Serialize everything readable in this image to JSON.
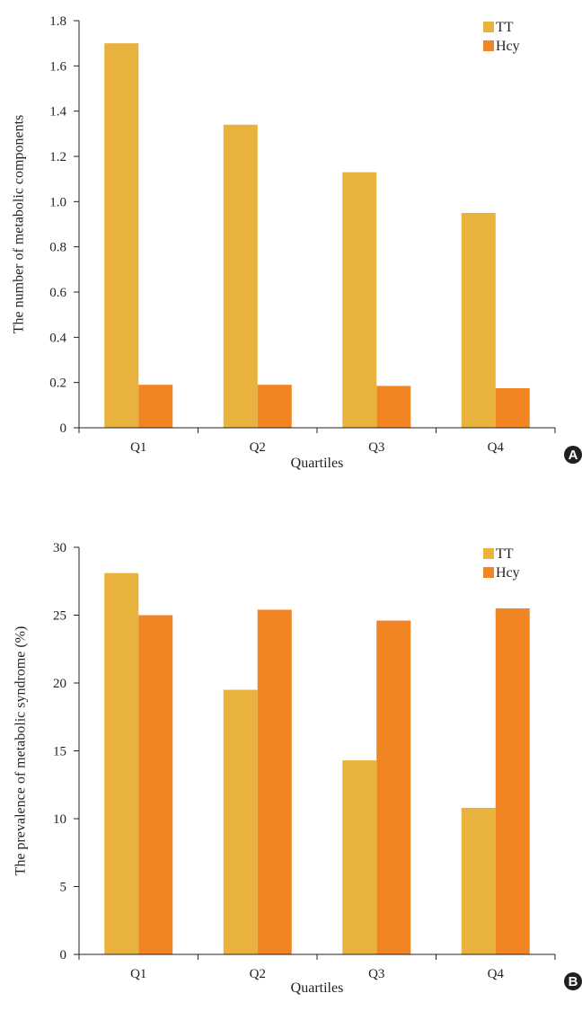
{
  "colors": {
    "TT": "#e9b23f",
    "Hcy": "#f18423",
    "axis": "#231f20",
    "badge": "#231f20"
  },
  "chart_data": [
    {
      "type": "bar",
      "panel_label": "A",
      "categories": [
        "Q1",
        "Q2",
        "Q3",
        "Q4"
      ],
      "series": [
        {
          "name": "TT",
          "values": [
            1.7,
            1.34,
            1.13,
            0.95
          ]
        },
        {
          "name": "Hcy",
          "values": [
            0.19,
            0.19,
            0.185,
            0.175
          ]
        }
      ],
      "xlabel": "Quartiles",
      "ylabel": "The number of metabolic components",
      "ylim": [
        0,
        1.8
      ],
      "yticks": [
        "0",
        "0.2",
        "0.4",
        "0.6",
        "0.8",
        "1.0",
        "1.2",
        "1.4",
        "1.6",
        "1.8"
      ],
      "grid": false,
      "legend_position": "top-right"
    },
    {
      "type": "bar",
      "panel_label": "B",
      "categories": [
        "Q1",
        "Q2",
        "Q3",
        "Q4"
      ],
      "series": [
        {
          "name": "TT",
          "values": [
            28.1,
            19.5,
            14.3,
            10.8
          ]
        },
        {
          "name": "Hcy",
          "values": [
            25.0,
            25.4,
            24.6,
            25.5
          ]
        }
      ],
      "xlabel": "Quartiles",
      "ylabel": "The prevalence of metabolic syndrome (%)",
      "ylim": [
        0,
        30
      ],
      "yticks": [
        "0",
        "5",
        "10",
        "15",
        "20",
        "25",
        "30"
      ],
      "grid": false,
      "legend_position": "top-right"
    }
  ]
}
